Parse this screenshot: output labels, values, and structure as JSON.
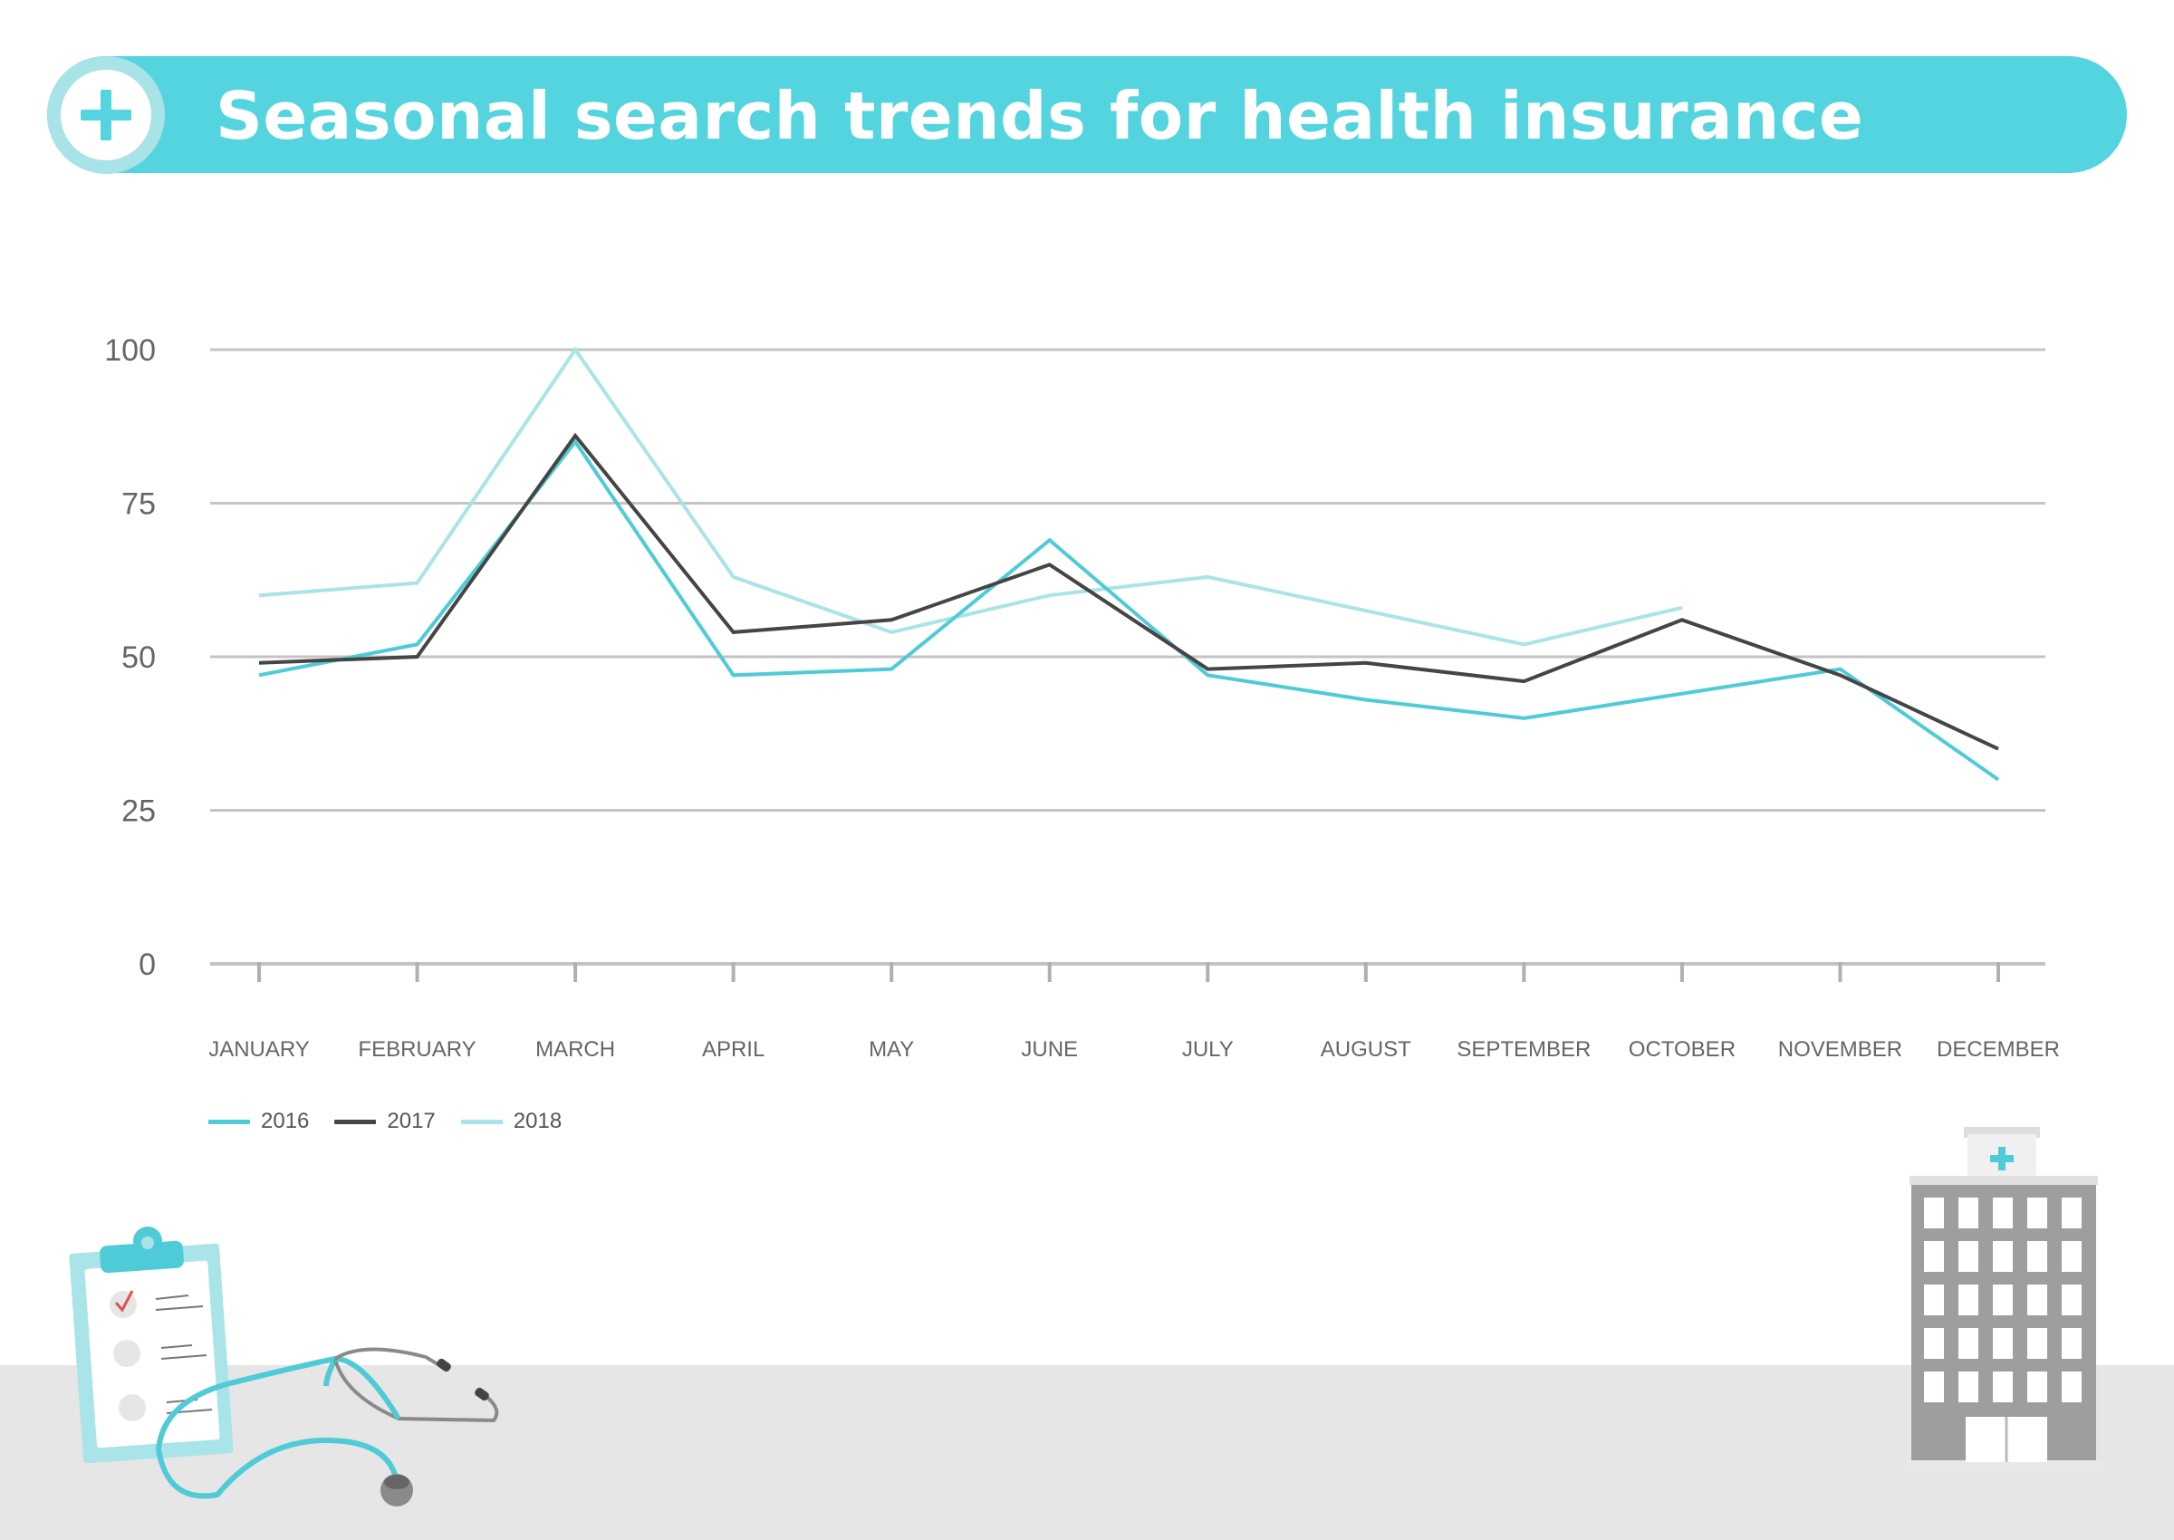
{
  "header": {
    "title": "Seasonal search trends for health insurance",
    "icon": "plus-icon"
  },
  "colors": {
    "banner": "#54d4de",
    "series_2016": "#4ecbd6",
    "series_2017": "#454545",
    "series_2018": "#a9e4e8",
    "grid": "#c4c4c4",
    "floor": "#e6e6e6"
  },
  "chart_data": {
    "type": "line",
    "title": "",
    "xlabel": "",
    "ylabel": "",
    "categories": [
      "JANUARY",
      "FEBRUARY",
      "MARCH",
      "APRIL",
      "MAY",
      "JUNE",
      "JULY",
      "AUGUST",
      "SEPTEMBER",
      "OCTOBER",
      "NOVEMBER",
      "DECEMBER"
    ],
    "yticks": [
      "100",
      "75",
      "50",
      "25",
      "0"
    ],
    "ylim": [
      0,
      100
    ],
    "grid": true,
    "legend_position": "bottom-left",
    "series": [
      {
        "name": "2016",
        "color": "#4ecbd6",
        "values": [
          47,
          52,
          85,
          47,
          48,
          69,
          47,
          43,
          40,
          44,
          48,
          30
        ]
      },
      {
        "name": "2017",
        "color": "#454545",
        "values": [
          49,
          50,
          86,
          54,
          56,
          65,
          48,
          49,
          46,
          56,
          47,
          35
        ]
      },
      {
        "name": "2018",
        "color": "#a9e4e8",
        "values": [
          60,
          62,
          100,
          63,
          54,
          60,
          63,
          null,
          52,
          58,
          null,
          null
        ]
      }
    ]
  },
  "illustrations": {
    "clipboard": "clipboard-icon",
    "stethoscope": "stethoscope-icon",
    "hospital": "hospital-icon"
  }
}
